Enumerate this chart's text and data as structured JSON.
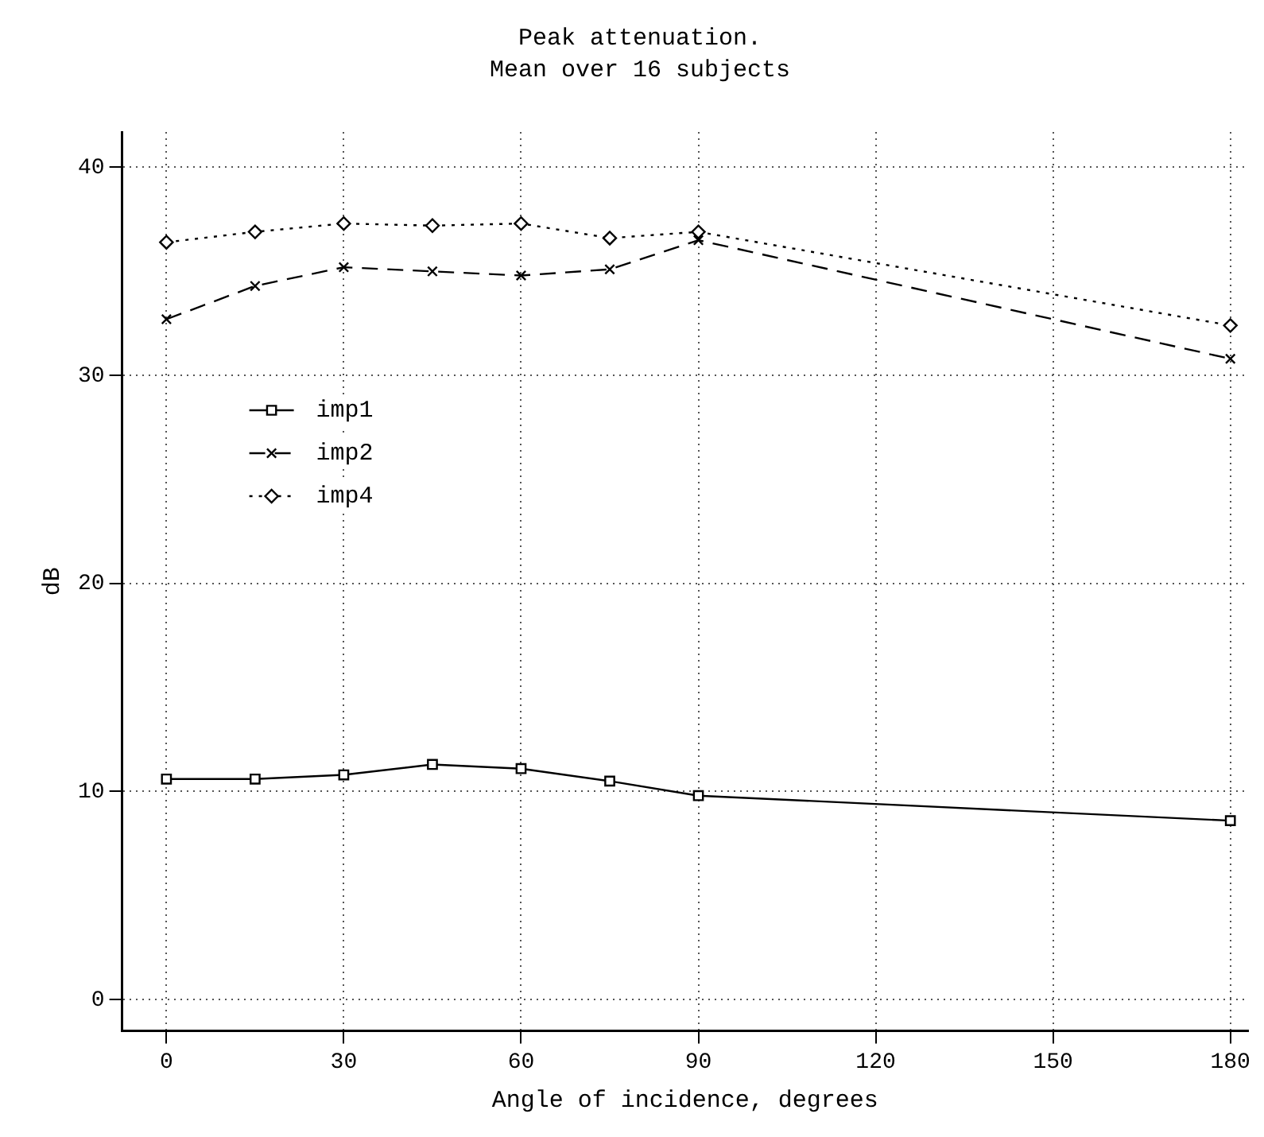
{
  "chart_data": {
    "type": "line",
    "title": "Peak attenuation.",
    "subtitle": "Mean over 16 subjects",
    "xlabel": "Angle of incidence, degrees",
    "ylabel": "dB",
    "x": [
      0,
      15,
      30,
      45,
      60,
      75,
      90,
      180
    ],
    "series": [
      {
        "name": "imp1",
        "color": "#000000",
        "marker": "square",
        "line_style": "solid",
        "values": [
          10.6,
          10.6,
          10.8,
          11.3,
          11.1,
          10.5,
          9.8,
          8.6
        ]
      },
      {
        "name": "imp2",
        "color": "#000000",
        "marker": "cross",
        "line_style": "dashed",
        "values": [
          32.7,
          34.3,
          35.2,
          35.0,
          34.8,
          35.1,
          36.5,
          30.8
        ]
      },
      {
        "name": "imp4",
        "color": "#000000",
        "marker": "diamond",
        "line_style": "dotted",
        "values": [
          36.4,
          36.9,
          37.3,
          37.2,
          37.3,
          36.6,
          36.9,
          32.4
        ]
      }
    ],
    "xlim": [
      -7.5,
      183
    ],
    "xticks": [
      0,
      30,
      60,
      90,
      120,
      150,
      180
    ],
    "ylim": [
      -1.5,
      41.7
    ],
    "yticks": [
      0,
      10,
      20,
      30,
      40
    ],
    "grid": true,
    "legend": "left"
  }
}
